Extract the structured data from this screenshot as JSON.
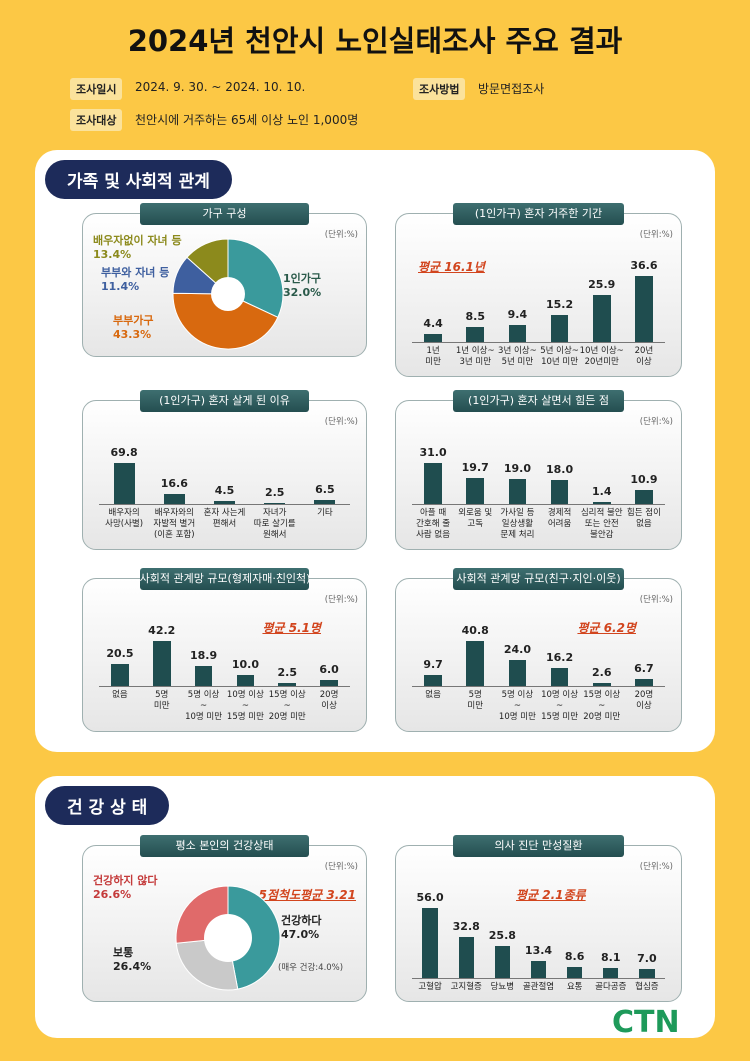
{
  "header": {
    "title": "2024년 천안시 노인실태조사 주요 결과",
    "info": [
      {
        "label": "조사일시",
        "text": "2024. 9. 30. ~ 2024. 10. 10."
      },
      {
        "label": "조사방법",
        "text": "방문면접조사"
      },
      {
        "label": "조사대상",
        "text": "천안시에 거주하는 65세 이상 노인 1,000명"
      }
    ]
  },
  "sections": [
    "가족 및 사회적 관계",
    "건 강 상 태"
  ],
  "logo": "CTN",
  "chart_data": [
    {
      "type": "pie",
      "title": "가구 구성",
      "unit_note": "(단위:%)",
      "categories": [
        "1인가구",
        "부부가구",
        "부부와 자녀 등",
        "배우자없이 자녀 등"
      ],
      "values": [
        32.0,
        43.3,
        11.4,
        13.4
      ],
      "value_labels": [
        "32.0%",
        "43.3%",
        "11.4%",
        "13.4%"
      ],
      "colors": [
        "#3a9a9c",
        "#d8690f",
        "#3e5f9f",
        "#8c8a1c"
      ]
    },
    {
      "type": "bar",
      "title": "(1인가구) 혼자 거주한 기간",
      "unit_note": "(단위:%)",
      "annotation": "평균 16.1년",
      "categories": [
        "1년\n미만",
        "1년 이상~\n3년 미만",
        "3년 이상~\n5년 미만",
        "5년 이상~\n10년 미만",
        "10년 이상~\n20년미만",
        "20년\n이상"
      ],
      "values": [
        4.4,
        8.5,
        9.4,
        15.2,
        25.9,
        36.6
      ],
      "value_labels": [
        "4.4",
        "8.5",
        "9.4",
        "15.2",
        "25.9",
        "36.6"
      ],
      "color": "#1f4d4f"
    },
    {
      "type": "bar",
      "title": "(1인가구) 혼자 살게 된 이유",
      "unit_note": "(단위:%)",
      "categories": [
        "배우자의\n사망(사별)",
        "배우자와의\n자발적 별거\n(이혼 포함)",
        "혼자 사는게\n편해서",
        "자녀가\n따로 살기를\n원해서",
        "기타"
      ],
      "values": [
        69.8,
        16.6,
        4.5,
        2.5,
        6.5
      ],
      "value_labels": [
        "69.8",
        "16.6",
        "4.5",
        "2.5",
        "6.5"
      ],
      "color": "#1f4d4f"
    },
    {
      "type": "bar",
      "title": "(1인가구) 혼자 살면서 힘든 점",
      "unit_note": "(단위:%)",
      "categories": [
        "아플 때\n간호해 줄\n사람 없음",
        "외로움 및\n고독",
        "가사일 등\n일상생활\n문제 처리",
        "경제적\n어려움",
        "심리적 불안\n또는 안전\n불안감",
        "힘든 점이\n없음"
      ],
      "values": [
        31.0,
        19.7,
        19.0,
        18.0,
        1.4,
        10.9
      ],
      "value_labels": [
        "31.0",
        "19.7",
        "19.0",
        "18.0",
        "1.4",
        "10.9"
      ],
      "color": "#1f4d4f"
    },
    {
      "type": "bar",
      "title": "사회적 관계망 규모(형제자매·친인척)",
      "unit_note": "(단위:%)",
      "annotation": "평균 5.1명",
      "categories": [
        "없음",
        "5명\n미만",
        "5명 이상\n~\n10명 미만",
        "10명 이상\n~\n15명 미만",
        "15명 이상\n~\n20명 미만",
        "20명\n이상"
      ],
      "values": [
        20.5,
        42.2,
        18.9,
        10.0,
        2.5,
        6.0
      ],
      "value_labels": [
        "20.5",
        "42.2",
        "18.9",
        "10.0",
        "2.5",
        "6.0"
      ],
      "color": "#1f4d4f"
    },
    {
      "type": "bar",
      "title": "사회적 관계망 규모(친구·지인·이웃)",
      "unit_note": "(단위:%)",
      "annotation": "평균 6.2명",
      "categories": [
        "없음",
        "5명\n미만",
        "5명 이상\n~\n10명 미만",
        "10명 이상\n~\n15명 미만",
        "15명 이상\n~\n20명 미만",
        "20명\n이상"
      ],
      "values": [
        9.7,
        40.8,
        24.0,
        16.2,
        2.6,
        6.7
      ],
      "value_labels": [
        "9.7",
        "40.8",
        "24.0",
        "16.2",
        "2.6",
        "6.7"
      ],
      "color": "#1f4d4f"
    },
    {
      "type": "pie",
      "title": "평소 본인의 건강상태",
      "unit_note": "(단위:%)",
      "annotation": "5점척도평균 3.21",
      "note": "(매우 건강:4.0%)",
      "categories": [
        "건강하다",
        "보통",
        "건강하지 않다"
      ],
      "values": [
        47.0,
        26.4,
        26.6
      ],
      "value_labels": [
        "47.0%",
        "26.4%",
        "26.6%"
      ],
      "colors": [
        "#3a9a9c",
        "#c9c9c9",
        "#e06a6a"
      ]
    },
    {
      "type": "bar",
      "title": "의사 진단 만성질환",
      "unit_note": "(단위:%)",
      "annotation": "평균 2.1종류",
      "categories": [
        "고혈압",
        "고지혈증",
        "당뇨병",
        "골관절염",
        "요통",
        "골다공증",
        "협심증"
      ],
      "values": [
        56.0,
        32.8,
        25.8,
        13.4,
        8.6,
        8.1,
        7.0
      ],
      "value_labels": [
        "56.0",
        "32.8",
        "25.8",
        "13.4",
        "8.6",
        "8.1",
        "7.0"
      ],
      "color": "#1f4d4f"
    }
  ]
}
